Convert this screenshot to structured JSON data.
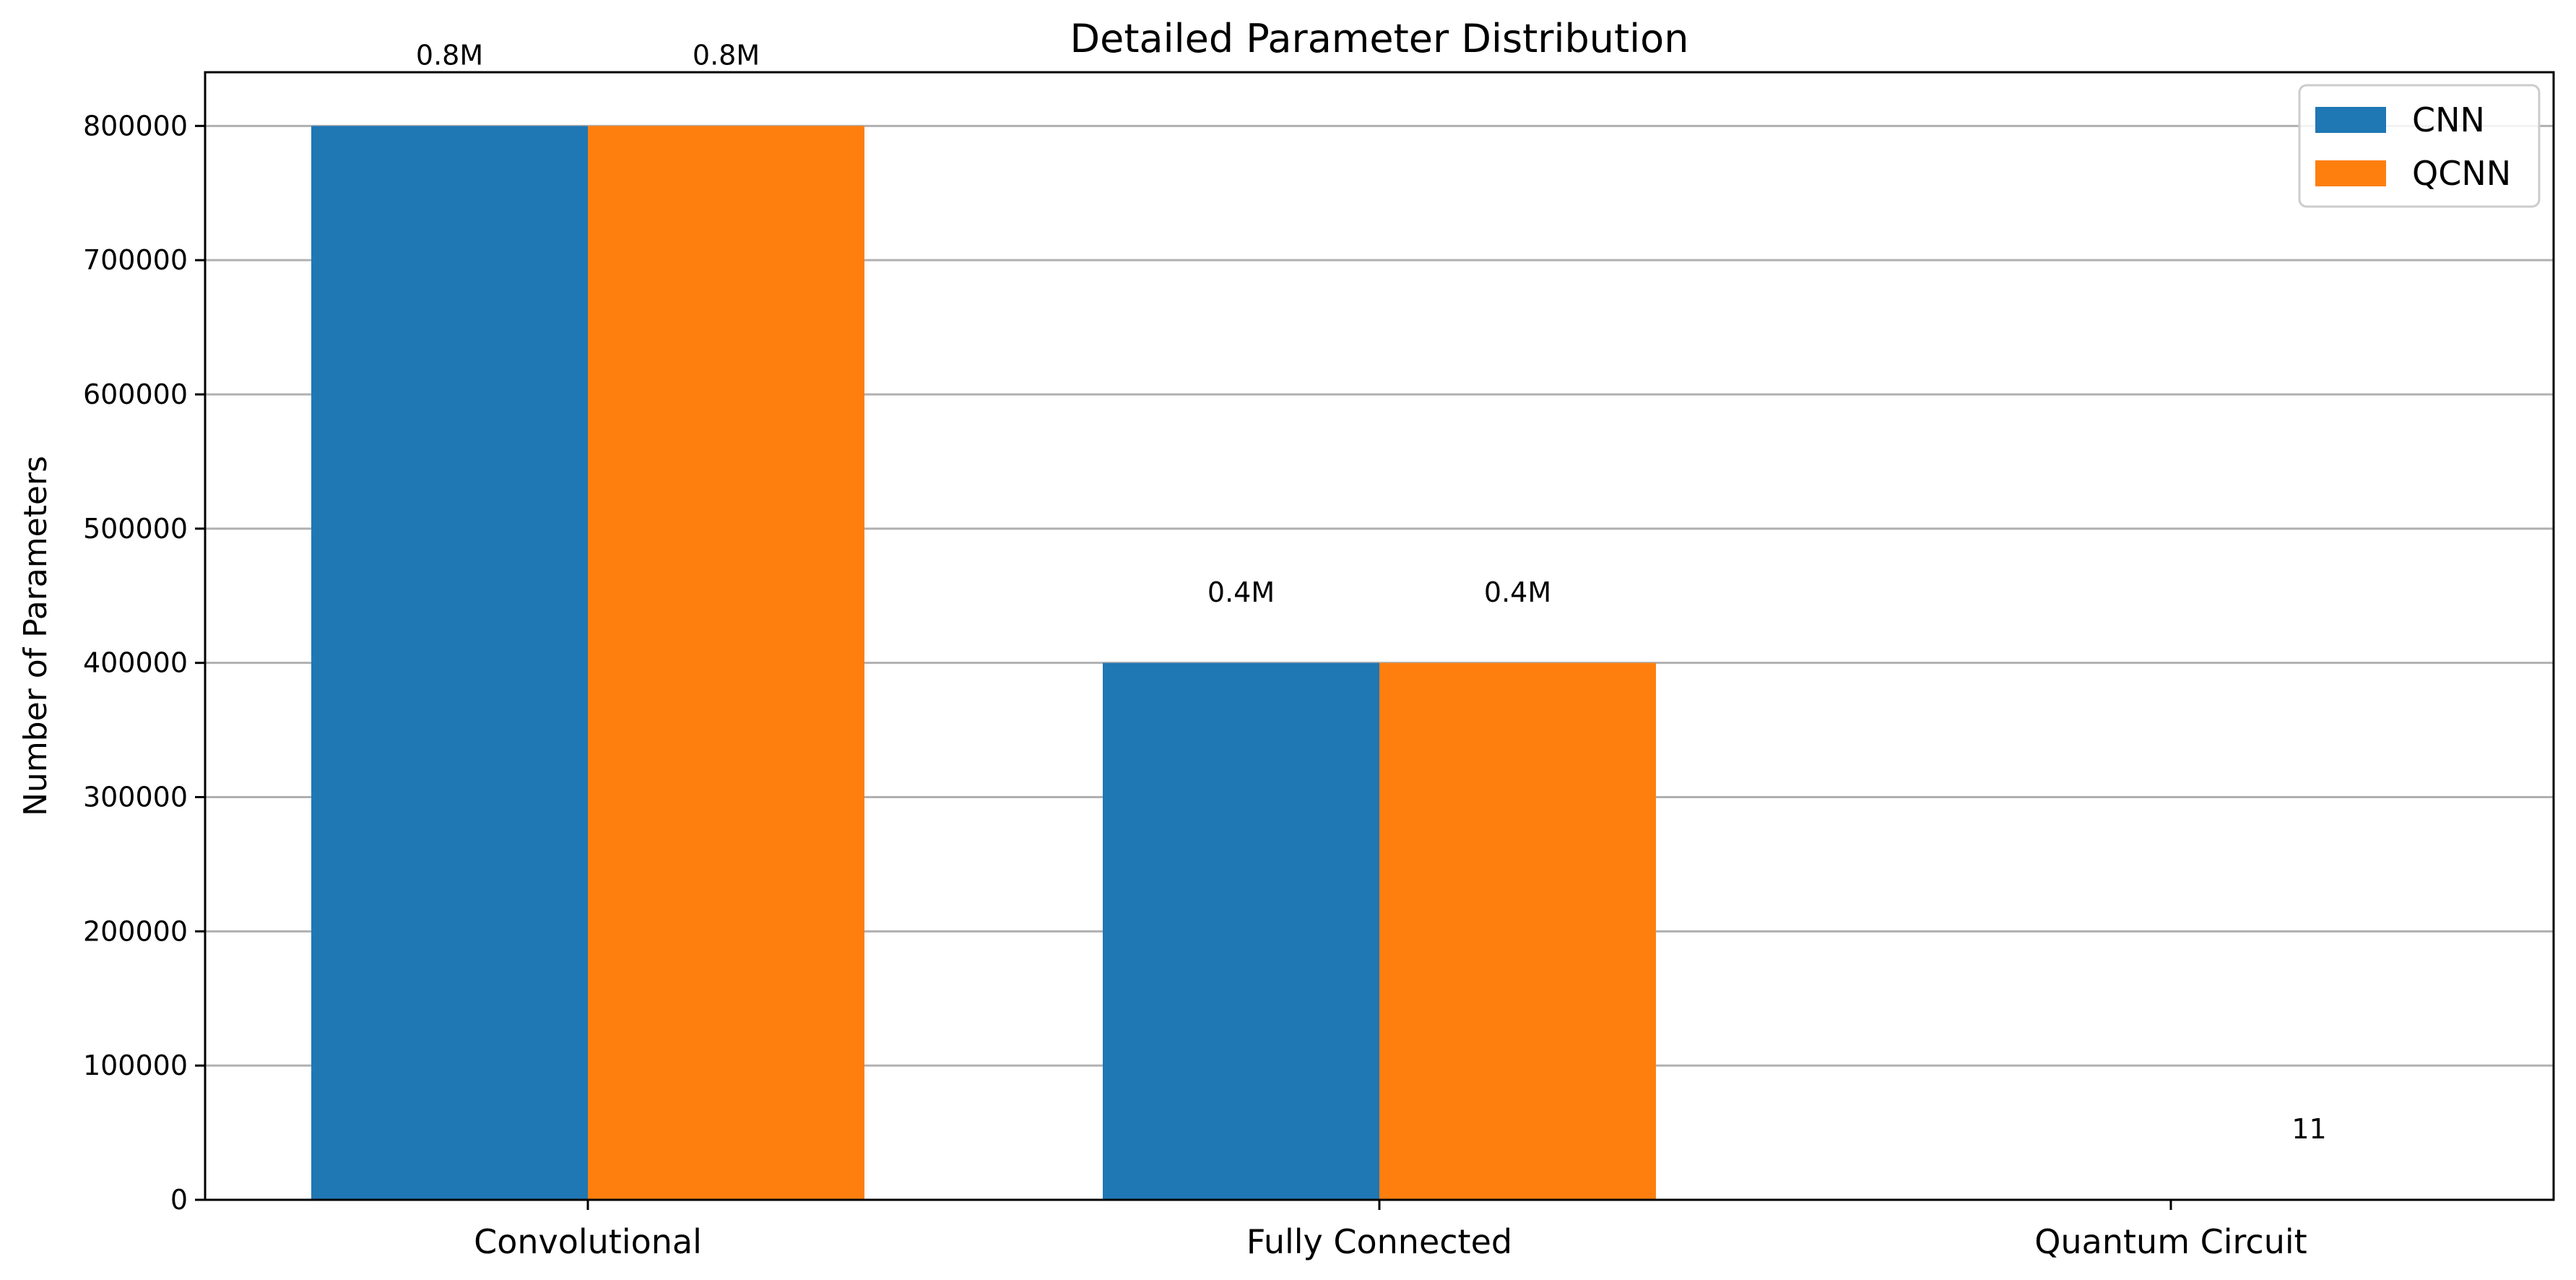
{
  "chart_data": {
    "type": "bar",
    "title": "Detailed Parameter Distribution",
    "xlabel": "",
    "ylabel": "Number of Parameters",
    "categories": [
      "Convolutional",
      "Fully Connected",
      "Quantum Circuit"
    ],
    "series": [
      {
        "name": "CNN",
        "color": "#1f77b4",
        "values": [
          800000,
          400000,
          0
        ],
        "labels": [
          "0.8M",
          "0.4M",
          ""
        ]
      },
      {
        "name": "QCNN",
        "color": "#ff7f0e",
        "values": [
          800000,
          400000,
          11
        ],
        "labels": [
          "0.8M",
          "0.4M",
          "11"
        ]
      }
    ],
    "ylim": [
      0,
      840000
    ],
    "yticks": [
      0,
      100000,
      200000,
      300000,
      400000,
      500000,
      600000,
      700000,
      800000
    ],
    "ytick_labels": [
      "0",
      "100000",
      "200000",
      "300000",
      "400000",
      "500000",
      "600000",
      "700000",
      "800000"
    ],
    "grid": "horizontal",
    "grid_color": "#b0b0b0",
    "legend_position": "top-right"
  }
}
